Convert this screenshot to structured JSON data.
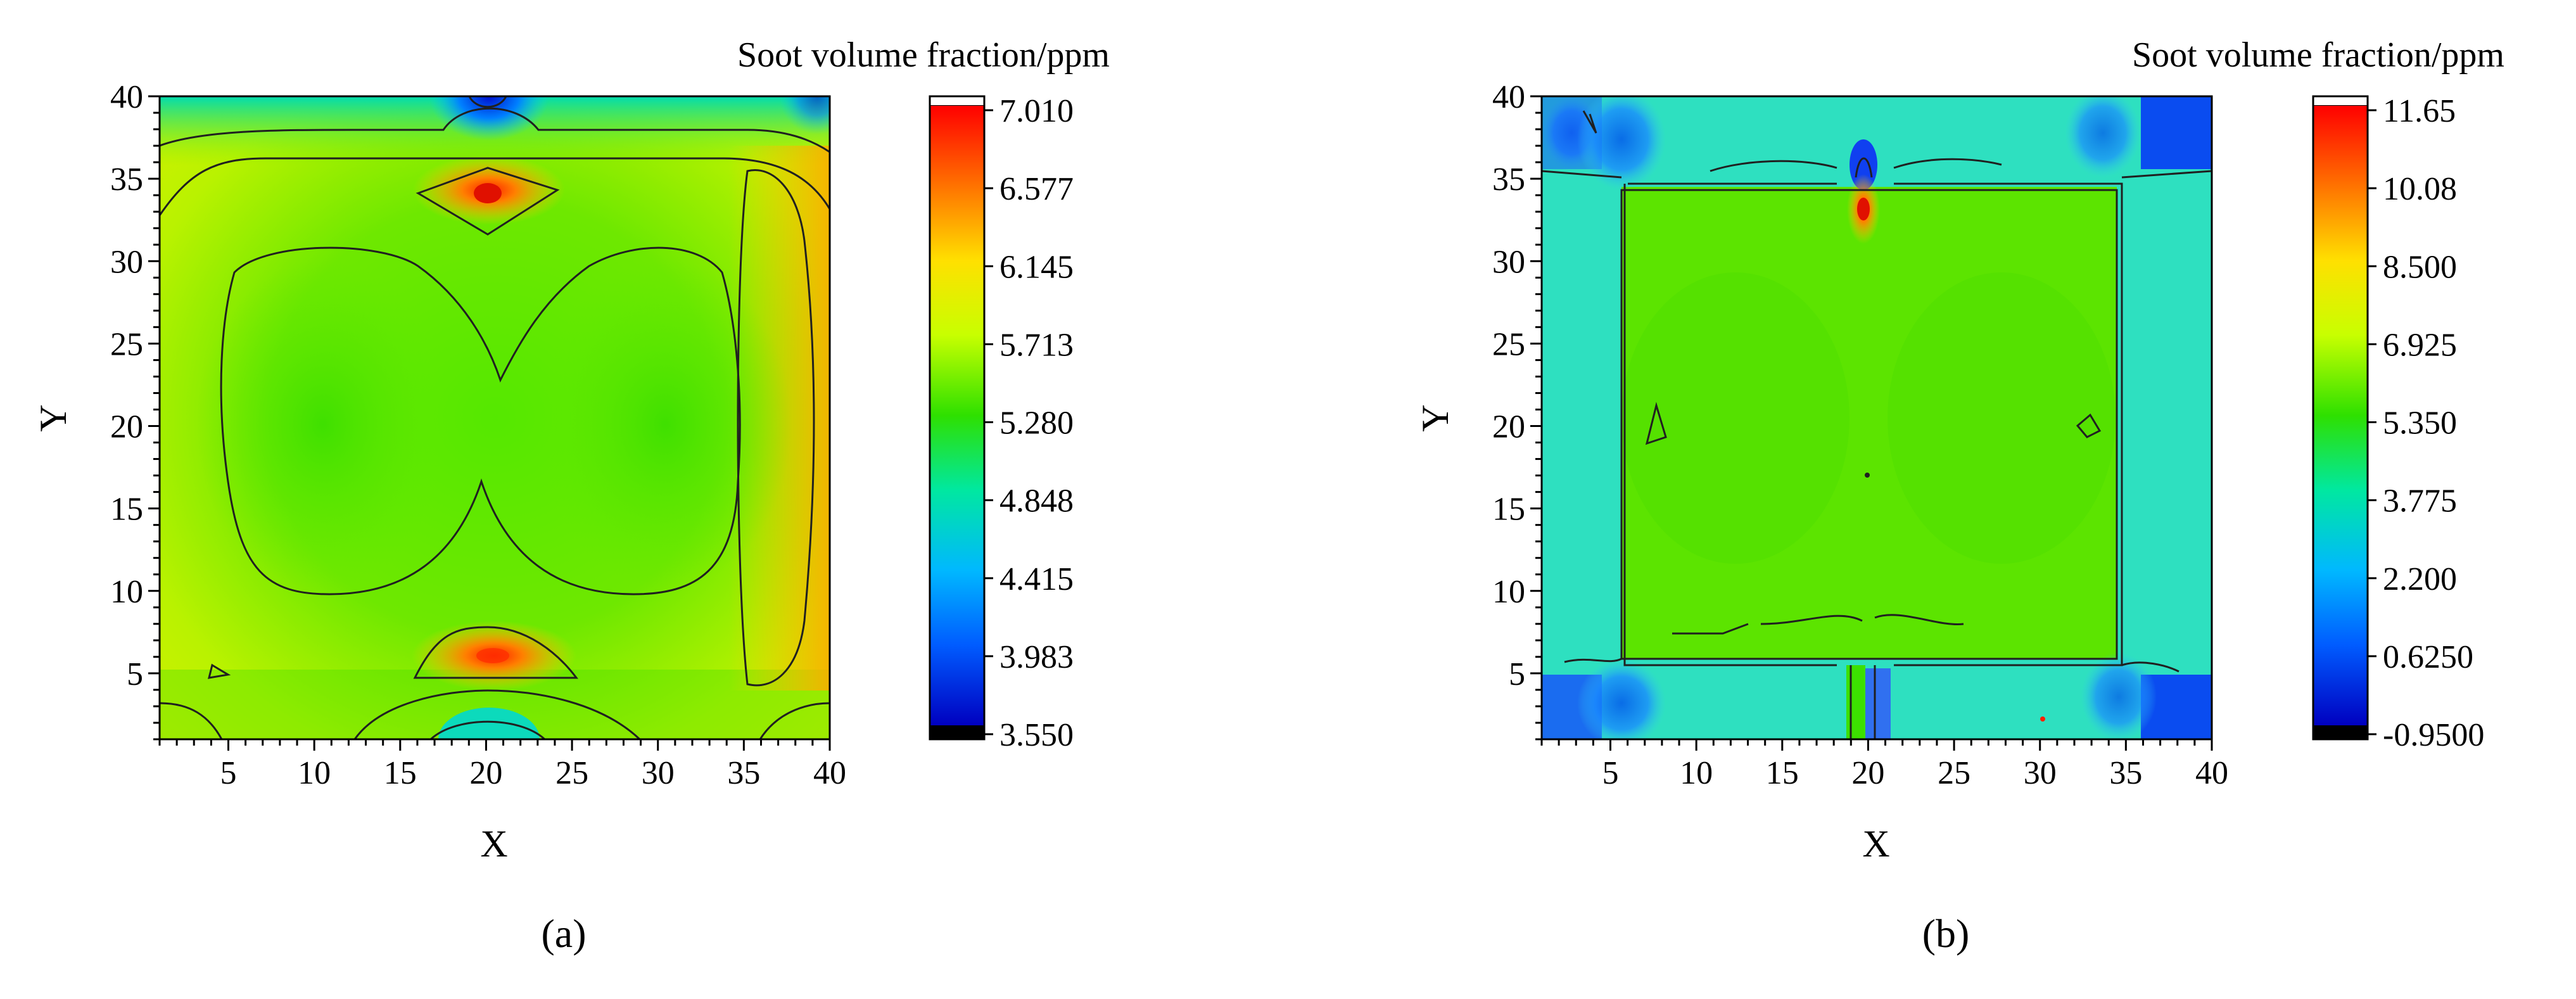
{
  "chart_data": [
    {
      "type": "heatmap",
      "panel_label": "(a)",
      "xlabel": "X",
      "ylabel": "Y",
      "xlim": [
        1,
        40
      ],
      "ylim": [
        1,
        40
      ],
      "x_ticks": [
        5,
        10,
        15,
        20,
        25,
        30,
        35,
        40
      ],
      "y_ticks": [
        5,
        10,
        15,
        20,
        25,
        30,
        35,
        40
      ],
      "colorbar": {
        "title": "Soot volume fraction/ppm",
        "min": 3.55,
        "max": 7.01,
        "ticks": [
          "7.010",
          "6.577",
          "6.145",
          "5.713",
          "5.280",
          "4.848",
          "4.415",
          "3.983",
          "3.550"
        ]
      },
      "description_points": [
        {
          "x": 20,
          "y": 34,
          "value": 6.9
        },
        {
          "x": 20.5,
          "y": 6,
          "value": 6.7
        },
        {
          "x": 20,
          "y": 40,
          "value": 3.9
        },
        {
          "x": 10,
          "y": 20,
          "value": 5.3
        },
        {
          "x": 30,
          "y": 20,
          "value": 5.3
        },
        {
          "x": 39,
          "y": 20,
          "value": 6.4
        },
        {
          "x": 20,
          "y": 1,
          "value": 4.6
        }
      ]
    },
    {
      "type": "heatmap",
      "panel_label": "(b)",
      "xlabel": "X",
      "ylabel": "Y",
      "xlim": [
        1,
        40
      ],
      "ylim": [
        1,
        40
      ],
      "x_ticks": [
        5,
        10,
        15,
        20,
        25,
        30,
        35,
        40
      ],
      "y_ticks": [
        5,
        10,
        15,
        20,
        25,
        30,
        35,
        40
      ],
      "colorbar": {
        "title": "Soot volume fraction/ppm",
        "min": -0.95,
        "max": 11.65,
        "ticks": [
          "11.65",
          "10.08",
          "8.500",
          "6.925",
          "5.350",
          "3.775",
          "2.200",
          "0.6250",
          "-0.9500"
        ]
      },
      "description_points": [
        {
          "x": 20,
          "y": 33,
          "value": 11.0
        },
        {
          "x": 20,
          "y": 20,
          "value": 6.2
        },
        {
          "x": 3,
          "y": 38,
          "value": 1.5
        },
        {
          "x": 38,
          "y": 38,
          "value": 1.0
        },
        {
          "x": 3,
          "y": 3,
          "value": 1.5
        },
        {
          "x": 38,
          "y": 3,
          "value": 1.0
        },
        {
          "x": 20,
          "y": 3,
          "value": 1.5
        }
      ]
    }
  ]
}
